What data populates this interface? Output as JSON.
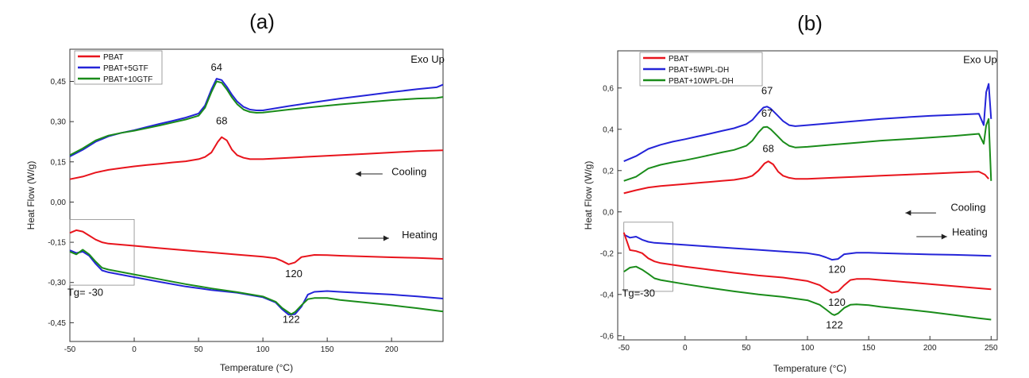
{
  "chart_data": [
    {
      "type": "line",
      "panel_label": "(a)",
      "xlabel": "Temperature (°C)",
      "ylabel": "Heat Flow (W/g)",
      "xlim": [
        -50,
        240
      ],
      "ylim": [
        -0.52,
        0.57
      ],
      "xticks": [
        -50,
        0,
        50,
        100,
        150,
        200
      ],
      "yticks": [
        -0.45,
        -0.3,
        -0.15,
        0.0,
        0.15,
        0.3,
        0.45
      ],
      "ytick_labels": [
        "-0,45",
        "-0,30",
        "-0,15",
        "0,00",
        "0,15",
        "0,30",
        "0,45"
      ],
      "legend_position": "top-left",
      "colors": {
        "PBAT": "#e8141c",
        "PBAT+5GTF": "#2424d8",
        "PBAT+10GTF": "#1a8c1a"
      },
      "series": [
        {
          "name": "PBAT",
          "segment": "cooling",
          "color": "#e8141c",
          "x": [
            -50,
            -40,
            -30,
            -20,
            -10,
            0,
            10,
            20,
            30,
            40,
            50,
            55,
            60,
            65,
            68,
            72,
            76,
            80,
            85,
            90,
            100,
            120,
            140,
            160,
            180,
            200,
            220,
            240
          ],
          "y": [
            0.085,
            0.095,
            0.11,
            0.12,
            0.127,
            0.133,
            0.138,
            0.143,
            0.148,
            0.152,
            0.16,
            0.168,
            0.185,
            0.225,
            0.242,
            0.23,
            0.195,
            0.175,
            0.165,
            0.16,
            0.16,
            0.165,
            0.17,
            0.175,
            0.18,
            0.185,
            0.19,
            0.193
          ]
        },
        {
          "name": "PBAT+5GTF",
          "segment": "cooling",
          "color": "#2424d8",
          "x": [
            -50,
            -40,
            -30,
            -20,
            -10,
            0,
            10,
            20,
            30,
            40,
            50,
            55,
            60,
            64,
            68,
            72,
            76,
            80,
            85,
            90,
            95,
            100,
            120,
            140,
            160,
            180,
            200,
            220,
            235,
            240
          ],
          "y": [
            0.17,
            0.195,
            0.225,
            0.245,
            0.258,
            0.268,
            0.28,
            0.292,
            0.303,
            0.315,
            0.33,
            0.36,
            0.42,
            0.46,
            0.455,
            0.43,
            0.4,
            0.375,
            0.355,
            0.345,
            0.342,
            0.342,
            0.358,
            0.372,
            0.386,
            0.398,
            0.41,
            0.421,
            0.428,
            0.438
          ]
        },
        {
          "name": "PBAT+10GTF",
          "segment": "cooling",
          "color": "#1a8c1a",
          "x": [
            -50,
            -40,
            -30,
            -20,
            -10,
            0,
            10,
            20,
            30,
            40,
            50,
            55,
            60,
            64,
            68,
            72,
            76,
            80,
            85,
            90,
            95,
            100,
            120,
            140,
            160,
            180,
            200,
            220,
            235,
            240
          ],
          "y": [
            0.175,
            0.2,
            0.23,
            0.248,
            0.258,
            0.266,
            0.276,
            0.286,
            0.297,
            0.308,
            0.322,
            0.352,
            0.41,
            0.45,
            0.445,
            0.42,
            0.39,
            0.365,
            0.345,
            0.336,
            0.333,
            0.334,
            0.345,
            0.355,
            0.364,
            0.372,
            0.38,
            0.386,
            0.388,
            0.392
          ]
        },
        {
          "name": "PBAT",
          "segment": "heating",
          "color": "#e8141c",
          "x": [
            -50,
            -45,
            -40,
            -35,
            -30,
            -25,
            -20,
            0,
            20,
            40,
            60,
            80,
            100,
            110,
            115,
            120,
            125,
            130,
            140,
            150,
            160,
            180,
            200,
            220,
            240
          ],
          "y": [
            -0.115,
            -0.105,
            -0.11,
            -0.125,
            -0.14,
            -0.15,
            -0.155,
            -0.163,
            -0.172,
            -0.18,
            -0.188,
            -0.196,
            -0.204,
            -0.21,
            -0.22,
            -0.232,
            -0.225,
            -0.205,
            -0.197,
            -0.198,
            -0.2,
            -0.203,
            -0.206,
            -0.208,
            -0.212
          ]
        },
        {
          "name": "PBAT+5GTF",
          "segment": "heating",
          "color": "#2424d8",
          "x": [
            -50,
            -45,
            -40,
            -35,
            -30,
            -25,
            -20,
            0,
            20,
            40,
            60,
            80,
            100,
            110,
            115,
            120,
            125,
            130,
            135,
            140,
            150,
            160,
            180,
            200,
            220,
            240
          ],
          "y": [
            -0.18,
            -0.19,
            -0.185,
            -0.2,
            -0.23,
            -0.255,
            -0.262,
            -0.28,
            -0.298,
            -0.315,
            -0.328,
            -0.338,
            -0.355,
            -0.375,
            -0.4,
            -0.42,
            -0.418,
            -0.39,
            -0.345,
            -0.335,
            -0.332,
            -0.335,
            -0.34,
            -0.345,
            -0.352,
            -0.36
          ]
        },
        {
          "name": "PBAT+10GTF",
          "segment": "heating",
          "color": "#1a8c1a",
          "x": [
            -50,
            -45,
            -40,
            -35,
            -30,
            -25,
            -20,
            0,
            20,
            40,
            60,
            80,
            100,
            110,
            115,
            120,
            122,
            125,
            130,
            135,
            140,
            150,
            160,
            180,
            200,
            220,
            240
          ],
          "y": [
            -0.185,
            -0.195,
            -0.178,
            -0.195,
            -0.222,
            -0.245,
            -0.252,
            -0.27,
            -0.288,
            -0.306,
            -0.322,
            -0.336,
            -0.352,
            -0.372,
            -0.395,
            -0.412,
            -0.418,
            -0.41,
            -0.385,
            -0.362,
            -0.358,
            -0.358,
            -0.365,
            -0.375,
            -0.385,
            -0.396,
            -0.408
          ]
        }
      ],
      "annotations": [
        {
          "text": "64",
          "x": 64,
          "y": 0.49
        },
        {
          "text": "68",
          "x": 68,
          "y": 0.29
        },
        {
          "text": "120",
          "x": 124,
          "y": -0.28
        },
        {
          "text": "122",
          "x": 122,
          "y": -0.45
        },
        {
          "text": "Tg= -30",
          "x": -38,
          "y": -0.35
        },
        {
          "text": "Exo Up",
          "x": 228,
          "y": 0.52
        },
        {
          "text": "Cooling",
          "x": 200,
          "y": 0.1
        },
        {
          "text": "Heating",
          "x": 208,
          "y": -0.135
        }
      ],
      "arrows": [
        {
          "direction": "left",
          "x_from": 193,
          "x_to": 172,
          "y": 0.105
        },
        {
          "direction": "right",
          "x_from": 174,
          "x_to": 198,
          "y": -0.135
        }
      ],
      "highlight_box": {
        "x0": -50,
        "x1": 0,
        "y0": -0.31,
        "y1": -0.065
      }
    },
    {
      "type": "line",
      "panel_label": "(b)",
      "xlabel": "Temperature (°C)",
      "ylabel": "Heat Flow (W/g)",
      "xlim": [
        -55,
        255
      ],
      "ylim": [
        -0.62,
        0.78
      ],
      "xticks": [
        -50,
        0,
        50,
        100,
        150,
        200,
        250
      ],
      "yticks": [
        -0.6,
        -0.4,
        -0.2,
        0.0,
        0.2,
        0.4,
        0.6
      ],
      "ytick_labels": [
        "-0,6",
        "-0,4",
        "-0,2",
        "0,0",
        "0,2",
        "0,4",
        "0,6"
      ],
      "legend_position": "top-left",
      "colors": {
        "PBAT": "#e8141c",
        "PBAT+5WPL-DH": "#2424d8",
        "PBAT+10WPL-DH": "#1a8c1a"
      },
      "series": [
        {
          "name": "PBAT",
          "segment": "cooling",
          "color": "#e8141c",
          "x": [
            -50,
            -40,
            -30,
            -20,
            -10,
            0,
            10,
            20,
            30,
            40,
            50,
            55,
            60,
            65,
            68,
            72,
            76,
            80,
            85,
            90,
            100,
            120,
            140,
            160,
            180,
            200,
            220,
            240,
            245,
            248
          ],
          "y": [
            0.09,
            0.105,
            0.118,
            0.125,
            0.13,
            0.135,
            0.14,
            0.145,
            0.15,
            0.155,
            0.165,
            0.175,
            0.2,
            0.235,
            0.245,
            0.23,
            0.195,
            0.175,
            0.165,
            0.16,
            0.16,
            0.165,
            0.17,
            0.175,
            0.18,
            0.185,
            0.19,
            0.195,
            0.18,
            0.16
          ]
        },
        {
          "name": "PBAT+5WPL-DH",
          "segment": "cooling",
          "color": "#2424d8",
          "x": [
            -50,
            -40,
            -30,
            -20,
            -10,
            0,
            10,
            20,
            30,
            40,
            50,
            55,
            60,
            64,
            67,
            70,
            75,
            80,
            85,
            90,
            100,
            120,
            140,
            160,
            180,
            200,
            220,
            240,
            244,
            246,
            248,
            250
          ],
          "y": [
            0.245,
            0.27,
            0.305,
            0.325,
            0.34,
            0.352,
            0.365,
            0.378,
            0.392,
            0.405,
            0.425,
            0.445,
            0.48,
            0.505,
            0.51,
            0.5,
            0.47,
            0.44,
            0.42,
            0.415,
            0.42,
            0.43,
            0.44,
            0.45,
            0.458,
            0.465,
            0.47,
            0.475,
            0.42,
            0.58,
            0.62,
            0.45
          ]
        },
        {
          "name": "PBAT+10WPL-DH",
          "segment": "cooling",
          "color": "#1a8c1a",
          "x": [
            -50,
            -40,
            -30,
            -20,
            -10,
            0,
            10,
            20,
            30,
            40,
            50,
            55,
            60,
            64,
            67,
            70,
            75,
            80,
            85,
            90,
            100,
            120,
            140,
            160,
            180,
            200,
            220,
            240,
            244,
            246,
            248,
            250
          ],
          "y": [
            0.15,
            0.17,
            0.21,
            0.228,
            0.24,
            0.25,
            0.262,
            0.275,
            0.288,
            0.3,
            0.32,
            0.345,
            0.385,
            0.41,
            0.412,
            0.4,
            0.37,
            0.34,
            0.32,
            0.312,
            0.315,
            0.325,
            0.335,
            0.345,
            0.352,
            0.36,
            0.368,
            0.378,
            0.33,
            0.42,
            0.45,
            0.15
          ]
        },
        {
          "name": "PBAT+5WPL-DH",
          "segment": "heating",
          "color": "#2424d8",
          "x": [
            -50,
            -45,
            -40,
            -35,
            -30,
            -25,
            -20,
            0,
            20,
            40,
            60,
            80,
            100,
            110,
            115,
            120,
            125,
            130,
            140,
            150,
            160,
            180,
            200,
            220,
            240,
            250
          ],
          "y": [
            -0.11,
            -0.125,
            -0.12,
            -0.135,
            -0.145,
            -0.15,
            -0.152,
            -0.16,
            -0.168,
            -0.176,
            -0.184,
            -0.192,
            -0.2,
            -0.21,
            -0.22,
            -0.232,
            -0.228,
            -0.205,
            -0.198,
            -0.198,
            -0.2,
            -0.203,
            -0.206,
            -0.208,
            -0.211,
            -0.213
          ]
        },
        {
          "name": "PBAT",
          "segment": "heating",
          "color": "#e8141c",
          "x": [
            -50,
            -45,
            -40,
            -35,
            -30,
            -25,
            -20,
            0,
            20,
            40,
            60,
            80,
            100,
            110,
            115,
            120,
            125,
            130,
            135,
            140,
            150,
            160,
            180,
            200,
            220,
            240,
            250
          ],
          "y": [
            -0.1,
            -0.185,
            -0.19,
            -0.2,
            -0.225,
            -0.24,
            -0.248,
            -0.265,
            -0.28,
            -0.295,
            -0.308,
            -0.318,
            -0.335,
            -0.355,
            -0.375,
            -0.392,
            -0.385,
            -0.355,
            -0.33,
            -0.325,
            -0.325,
            -0.33,
            -0.34,
            -0.35,
            -0.36,
            -0.37,
            -0.375
          ]
        },
        {
          "name": "PBAT+10WPL-DH",
          "segment": "heating",
          "color": "#1a8c1a",
          "x": [
            -50,
            -45,
            -40,
            -35,
            -30,
            -25,
            -20,
            0,
            20,
            40,
            60,
            80,
            100,
            110,
            115,
            120,
            122,
            125,
            130,
            135,
            140,
            150,
            160,
            180,
            200,
            220,
            240,
            250
          ],
          "y": [
            -0.29,
            -0.27,
            -0.265,
            -0.28,
            -0.3,
            -0.322,
            -0.33,
            -0.35,
            -0.368,
            -0.385,
            -0.4,
            -0.412,
            -0.428,
            -0.45,
            -0.472,
            -0.495,
            -0.5,
            -0.492,
            -0.465,
            -0.45,
            -0.448,
            -0.452,
            -0.46,
            -0.472,
            -0.485,
            -0.5,
            -0.515,
            -0.522
          ]
        }
      ],
      "annotations": [
        {
          "text": "67",
          "x": 67,
          "y": 0.57
        },
        {
          "text": "67",
          "x": 67,
          "y": 0.46
        },
        {
          "text": "68",
          "x": 68,
          "y": 0.29
        },
        {
          "text": "120",
          "x": 124,
          "y": -0.295
        },
        {
          "text": "120",
          "x": 124,
          "y": -0.455
        },
        {
          "text": "122",
          "x": 122,
          "y": -0.565
        },
        {
          "text": "Tg=-30",
          "x": -38,
          "y": -0.41
        },
        {
          "text": "Exo Up",
          "x": 241,
          "y": 0.72
        },
        {
          "text": "Cooling",
          "x": 217,
          "y": 0.005
        },
        {
          "text": "Heating",
          "x": 218,
          "y": -0.115
        }
      ],
      "arrows": [
        {
          "direction": "left",
          "x_from": 205,
          "x_to": 180,
          "y": -0.005
        },
        {
          "direction": "right",
          "x_from": 189,
          "x_to": 214,
          "y": -0.12
        }
      ],
      "highlight_box": {
        "x0": -50,
        "x1": -10,
        "y0": -0.385,
        "y1": -0.05
      }
    }
  ]
}
